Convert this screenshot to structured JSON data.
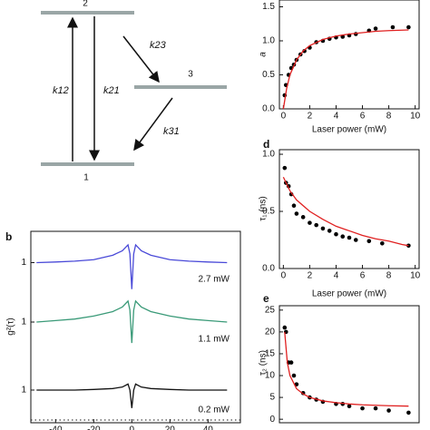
{
  "diagram": {
    "levels": [
      "2",
      "3",
      "1"
    ],
    "rates": [
      "k12",
      "k21",
      "k23",
      "k31"
    ]
  },
  "chart_data": [
    {
      "type": "scatter",
      "ylabel": "a",
      "xlabel": "Laser power (mW)",
      "xlim": [
        -0.3,
        10.3
      ],
      "xticks": [
        0,
        2,
        4,
        6,
        8,
        10
      ],
      "ylim": [
        0,
        1.6
      ],
      "yticks": [
        {
          "value": 0,
          "label": "0.0"
        },
        0.5,
        {
          "value": 1,
          "label": "1.0"
        },
        1.5
      ],
      "series": [
        {
          "mode": "markers",
          "color": "#000000",
          "x": [
            0.1,
            0.2,
            0.4,
            0.6,
            0.8,
            1,
            1.3,
            1.6,
            2,
            2.5,
            3,
            3.5,
            4,
            4.5,
            5,
            5.5,
            6.5,
            7,
            8.3,
            9.5
          ],
          "values": [
            0.2,
            0.35,
            0.5,
            0.6,
            0.65,
            0.72,
            0.8,
            0.85,
            0.9,
            0.98,
            1.0,
            1.03,
            1.05,
            1.06,
            1.08,
            1.1,
            1.15,
            1.18,
            1.2,
            1.2
          ]
        },
        {
          "mode": "line",
          "color": "#e02020",
          "x": [
            0,
            0.25,
            0.5,
            1,
            1.5,
            2,
            3,
            4,
            5,
            6,
            7,
            8,
            9.5
          ],
          "values": [
            0,
            0.3,
            0.5,
            0.72,
            0.85,
            0.93,
            1.02,
            1.07,
            1.1,
            1.12,
            1.14,
            1.15,
            1.16
          ]
        }
      ]
    },
    {
      "type": "scatter",
      "label": "d",
      "ylabel": "τ₁ (ns)",
      "xlabel": "Laser power (mW)",
      "xlim": [
        -0.3,
        10.3
      ],
      "xticks": [
        0,
        2,
        4,
        6,
        8,
        10
      ],
      "ylim": [
        0,
        1.04
      ],
      "yticks": [
        {
          "value": 0,
          "label": "0.0"
        },
        0.5,
        {
          "value": 1,
          "label": "1.0"
        }
      ],
      "series": [
        {
          "mode": "markers",
          "color": "#000000",
          "x": [
            0.1,
            0.2,
            0.4,
            0.6,
            0.8,
            1,
            1.5,
            2,
            2.5,
            3,
            3.5,
            4,
            4.5,
            5,
            5.5,
            6.5,
            7.5,
            9.5
          ],
          "values": [
            0.88,
            0.75,
            0.72,
            0.65,
            0.55,
            0.48,
            0.45,
            0.4,
            0.38,
            0.35,
            0.33,
            0.3,
            0.28,
            0.27,
            0.25,
            0.24,
            0.22,
            0.2
          ]
        },
        {
          "mode": "line",
          "color": "#e02020",
          "x": [
            0,
            0.5,
            1,
            2,
            3,
            4,
            5,
            6,
            7,
            8,
            9,
            9.5
          ],
          "values": [
            0.8,
            0.68,
            0.6,
            0.5,
            0.43,
            0.37,
            0.33,
            0.29,
            0.26,
            0.24,
            0.21,
            0.2
          ]
        }
      ]
    },
    {
      "type": "scatter",
      "label": "e",
      "ylabel": "τ₂ (ns)",
      "xlim": [
        -0.3,
        10.3
      ],
      "ylim": [
        -0.8,
        26
      ],
      "yticks": [
        0,
        5,
        10,
        15,
        20,
        25
      ],
      "series": [
        {
          "mode": "markers",
          "color": "#000000",
          "x": [
            0.1,
            0.2,
            0.4,
            0.6,
            0.8,
            1,
            1.5,
            2,
            2.5,
            3,
            4,
            4.5,
            5,
            6,
            7,
            8,
            9.5
          ],
          "values": [
            21,
            20,
            13,
            13,
            10,
            8,
            6,
            5,
            4.5,
            4,
            3.5,
            3.5,
            3,
            2.5,
            2.5,
            2,
            1.5
          ]
        },
        {
          "mode": "line",
          "color": "#e02020",
          "x": [
            0.1,
            0.3,
            0.5,
            1,
            1.5,
            2,
            3,
            4,
            5,
            6,
            8,
            9.5
          ],
          "values": [
            20,
            13,
            10,
            7,
            5.8,
            5,
            4.2,
            3.8,
            3.5,
            3.3,
            3.1,
            3.0
          ]
        }
      ]
    },
    {
      "type": "trace",
      "label": "b",
      "annotation": "2.7 mW",
      "xlim": [
        -53,
        57
      ],
      "ylim": [
        0,
        2.06
      ],
      "yticks": [
        1
      ],
      "series": [
        {
          "color": "#4a4ad8",
          "x": [
            -50,
            -40,
            -30,
            -20,
            -10,
            -5,
            -2,
            -1,
            0,
            1,
            2,
            5,
            10,
            20,
            30,
            40,
            50
          ],
          "values": [
            1.0,
            1.02,
            1.05,
            1.1,
            1.25,
            1.4,
            1.6,
            1.3,
            0.1,
            1.3,
            1.6,
            1.4,
            1.25,
            1.1,
            1.05,
            1.02,
            1.0
          ]
        }
      ]
    },
    {
      "type": "trace",
      "ylabel": "g²(τ)",
      "annotation": "1.1 mW",
      "xlim": [
        -53,
        57
      ],
      "ylim": [
        0,
        2
      ],
      "yticks": [
        1
      ],
      "series": [
        {
          "color": "#3a9a78",
          "x": [
            -50,
            -40,
            -30,
            -20,
            -10,
            -5,
            -2,
            -1,
            0,
            1,
            2,
            5,
            10,
            20,
            30,
            40,
            50
          ],
          "values": [
            1.0,
            1.05,
            1.1,
            1.2,
            1.35,
            1.5,
            1.7,
            1.4,
            0.3,
            1.4,
            1.7,
            1.5,
            1.35,
            1.2,
            1.1,
            1.05,
            1.0
          ]
        }
      ]
    },
    {
      "type": "trace",
      "annotation": "0.2 mW",
      "xlim": [
        -53,
        57
      ],
      "xticks": [
        -40,
        -20,
        0,
        20,
        40
      ],
      "ylim": [
        -0.09,
        2.27
      ],
      "yticks": [
        1
      ],
      "series": [
        {
          "color": "#111111",
          "x": [
            -50,
            -40,
            -30,
            -20,
            -10,
            -5,
            -2,
            -1,
            0,
            1,
            2,
            5,
            10,
            20,
            30,
            40,
            50
          ],
          "values": [
            1.0,
            1.0,
            1.0,
            1.02,
            1.05,
            1.1,
            1.2,
            1.0,
            0.4,
            1.0,
            1.2,
            1.1,
            1.05,
            1.02,
            1.0,
            1.0,
            1.0
          ]
        }
      ]
    }
  ]
}
